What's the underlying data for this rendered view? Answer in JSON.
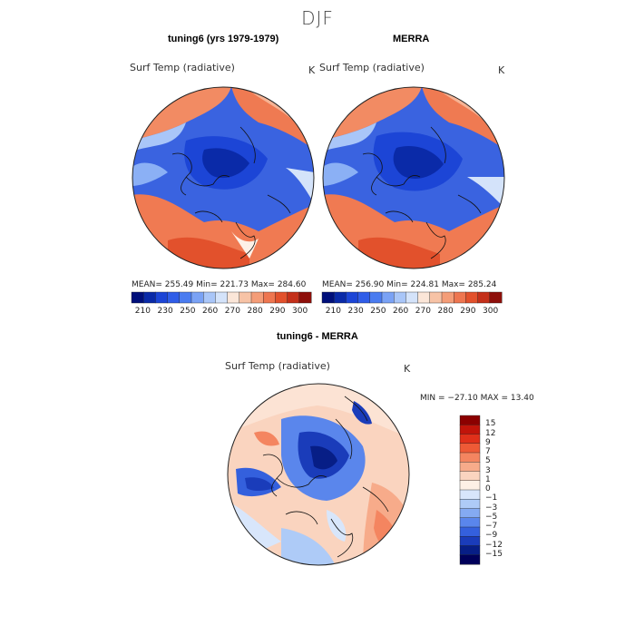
{
  "page": {
    "title": "DJF"
  },
  "panels": [
    {
      "title": "tuning6 (yrs 1979-1979)",
      "variable": "Surf Temp (radiative)",
      "units": "K",
      "stats": "MEAN= 255.49  Min= 221.73  Max= 284.60"
    },
    {
      "title": "MERRA",
      "variable": "Surf Temp (radiative)",
      "units": "K",
      "stats": "MEAN= 256.90  Min= 224.81  Max= 285.24"
    },
    {
      "title": "tuning6 - MERRA",
      "variable": "Surf Temp (radiative)",
      "units": "K",
      "stats": "MIN = −27.10 MAX =  13.40"
    }
  ],
  "abs_colorbar": {
    "tick_labels": [
      "210",
      "230",
      "250",
      "260",
      "270",
      "280",
      "290",
      "300"
    ],
    "colors": [
      "#000f7a",
      "#0a2aa8",
      "#1c45d6",
      "#2f5de8",
      "#4a7cf0",
      "#7aa2f5",
      "#a9c6f8",
      "#d4e3fa",
      "#fbe6d8",
      "#f7c3a6",
      "#f49d78",
      "#ee7650",
      "#e2512c",
      "#c4301a",
      "#8e0f0a"
    ]
  },
  "diff_colorbar": {
    "tick_labels": [
      "15",
      "12",
      "9",
      "7",
      "5",
      "3",
      "1",
      "0",
      "−1",
      "−3",
      "−5",
      "−7",
      "−9",
      "−12",
      "−15"
    ],
    "colors": [
      "#8b0000",
      "#c1140a",
      "#e0301a",
      "#ee5a36",
      "#f48560",
      "#f7ab8a",
      "#fad4bf",
      "#fdf0e6",
      "#d8e6fb",
      "#aecbf7",
      "#84aaf2",
      "#5a86ec",
      "#3460dd",
      "#1a3cba",
      "#071e86",
      "#00005a"
    ]
  }
}
